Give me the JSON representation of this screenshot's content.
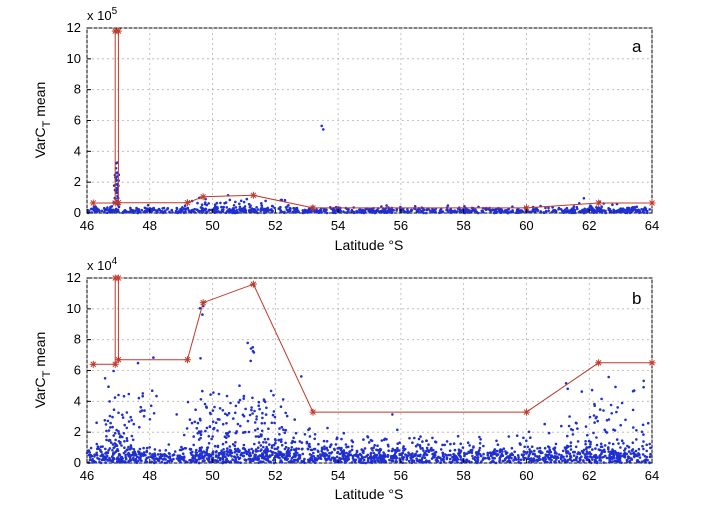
{
  "chart_data": [
    {
      "type": "scatter",
      "panel_label": "a",
      "xlabel": "Latitude °S",
      "ylabel": "VarC",
      "ylabel_subscript": "T",
      "ylabel_suffix": " mean",
      "xlim": [
        46,
        64
      ],
      "ylim": [
        0,
        12
      ],
      "xticks": [
        "46",
        "48",
        "50",
        "52",
        "54",
        "56",
        "58",
        "60",
        "62",
        "64"
      ],
      "yticks": [
        "0",
        "2",
        "4",
        "6",
        "8",
        "10",
        "12"
      ],
      "y_multiplier_text": "x 10",
      "y_multiplier_exp": "5",
      "grid": true,
      "series": [
        {
          "kind": "line",
          "color": "#c0392b",
          "x": [
            46.2,
            46.9,
            46.9,
            47.0,
            47.0,
            49.2,
            49.7,
            51.3,
            53.2,
            60.0,
            62.3,
            64.0
          ],
          "y": [
            0.65,
            0.65,
            11.8,
            11.8,
            0.67,
            0.67,
            1.05,
            1.15,
            0.33,
            0.33,
            0.65,
            0.65
          ]
        },
        {
          "kind": "points",
          "color": "#1f2fd1",
          "clusters": [
            {
              "x": 46.95,
              "y": 1.2,
              "xs": 0.05,
              "ys": 1.0,
              "n": 30
            },
            {
              "x": 46.95,
              "y": 2.5,
              "xs": 0.03,
              "ys": 0.5,
              "n": 8
            },
            {
              "x": 53.5,
              "y": 5.5,
              "xs": 0.02,
              "ys": 0.1,
              "n": 2
            },
            {
              "x": 51.0,
              "y": 0.4,
              "xs": 0.8,
              "ys": 0.3,
              "n": 40
            },
            {
              "x": 49.8,
              "y": 0.4,
              "xs": 0.3,
              "ys": 0.3,
              "n": 15
            },
            {
              "x": 62.3,
              "y": 0.3,
              "xs": 0.4,
              "ys": 0.3,
              "n": 20
            },
            {
              "x": 55.0,
              "y": 0.15,
              "xs": 9.0,
              "ys": 0.12,
              "n": 900
            }
          ]
        }
      ]
    },
    {
      "type": "scatter",
      "panel_label": "b",
      "xlabel": "Latitude °S",
      "ylabel": "VarC",
      "ylabel_subscript": "T",
      "ylabel_suffix": " mean",
      "xlim": [
        46,
        64
      ],
      "ylim": [
        0,
        12
      ],
      "xticks": [
        "46",
        "48",
        "50",
        "52",
        "54",
        "56",
        "58",
        "60",
        "62",
        "64"
      ],
      "yticks": [
        "0",
        "2",
        "4",
        "6",
        "8",
        "10",
        "12"
      ],
      "y_multiplier_text": "x 10",
      "y_multiplier_exp": "4",
      "grid": true,
      "series": [
        {
          "kind": "line",
          "color": "#c0392b",
          "x": [
            46.2,
            46.9,
            46.9,
            47.0,
            47.0,
            49.2,
            49.7,
            51.3,
            53.2,
            60.0,
            62.3,
            64.0
          ],
          "y": [
            6.4,
            6.4,
            12.0,
            12.0,
            6.7,
            6.7,
            10.4,
            11.6,
            3.3,
            3.3,
            6.5,
            6.5
          ]
        },
        {
          "kind": "points",
          "color": "#1f2fd1",
          "clusters": [
            {
              "x": 55.0,
              "y": 0.4,
              "xs": 9.0,
              "ys": 0.35,
              "n": 1400
            },
            {
              "x": 47.0,
              "y": 2.0,
              "xs": 0.3,
              "ys": 1.6,
              "n": 80
            },
            {
              "x": 49.7,
              "y": 2.0,
              "xs": 0.4,
              "ys": 1.6,
              "n": 60
            },
            {
              "x": 51.4,
              "y": 1.8,
              "xs": 0.9,
              "ys": 1.4,
              "n": 180
            },
            {
              "x": 51.2,
              "y": 7.2,
              "xs": 0.1,
              "ys": 0.6,
              "n": 6
            },
            {
              "x": 49.7,
              "y": 10.0,
              "xs": 0.05,
              "ys": 0.3,
              "n": 3
            },
            {
              "x": 55.0,
              "y": 1.0,
              "xs": 2.0,
              "ys": 0.6,
              "n": 120
            },
            {
              "x": 62.3,
              "y": 2.0,
              "xs": 0.5,
              "ys": 1.5,
              "n": 70
            },
            {
              "x": 63.7,
              "y": 3.0,
              "xs": 0.2,
              "ys": 1.5,
              "n": 12
            },
            {
              "x": 60.8,
              "y": 1.0,
              "xs": 1.2,
              "ys": 0.7,
              "n": 60
            },
            {
              "x": 47.9,
              "y": 3.5,
              "xs": 0.2,
              "ys": 2.0,
              "n": 15
            }
          ]
        }
      ]
    }
  ]
}
